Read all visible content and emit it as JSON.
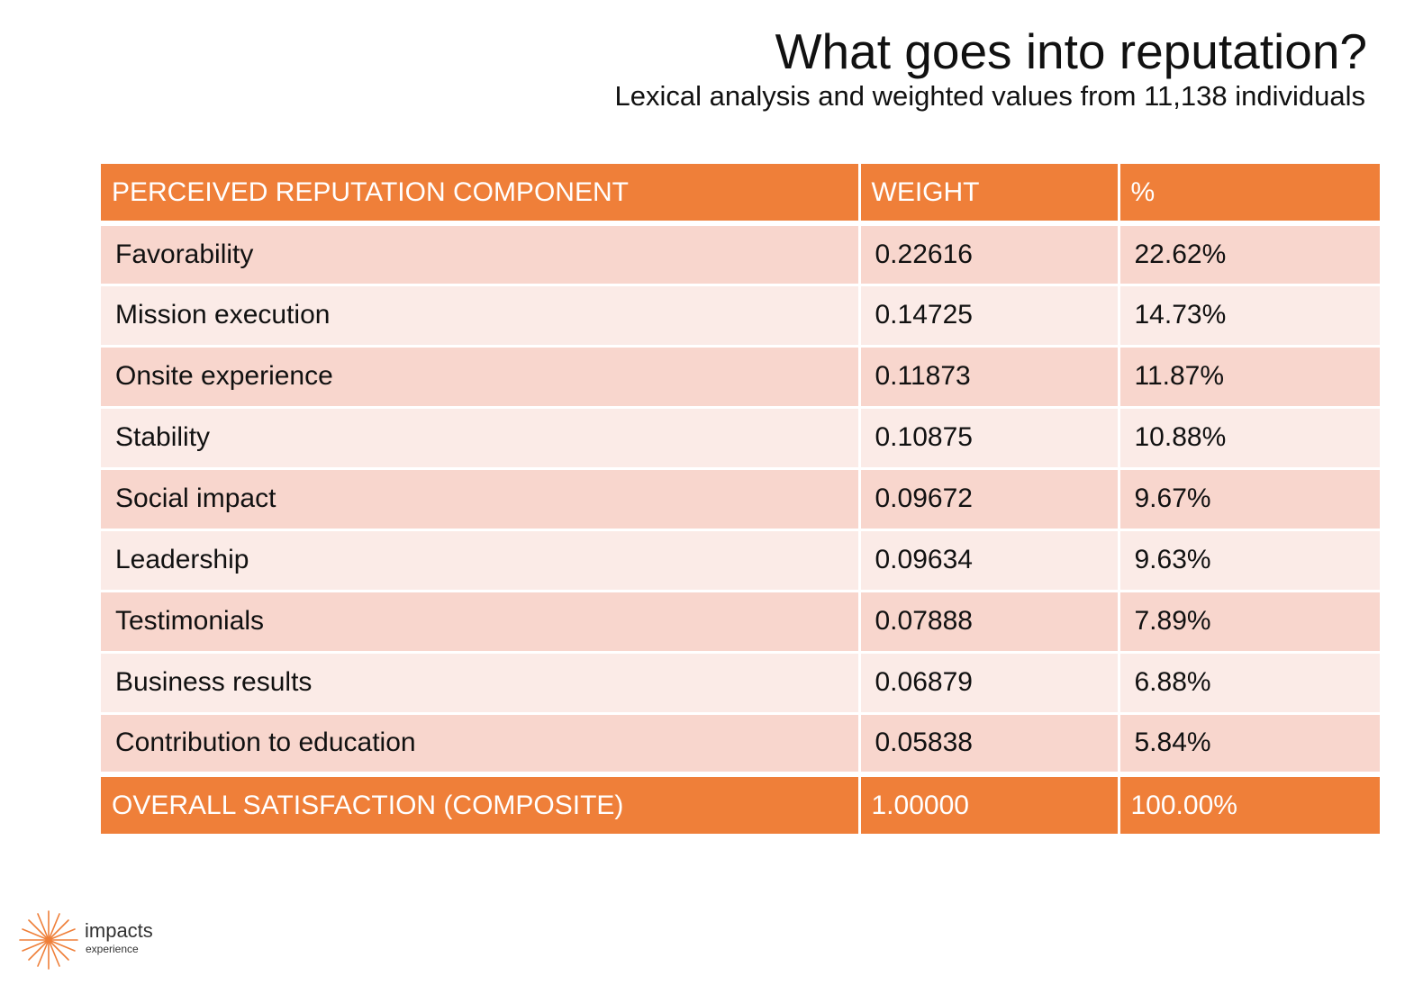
{
  "slide": {
    "title": "What goes into reputation?",
    "subtitle": "Lexical analysis and weighted values from 11,138 individuals"
  },
  "table": {
    "headers": [
      "PERCEIVED REPUTATION COMPONENT",
      "WEIGHT",
      "%"
    ],
    "rows": [
      {
        "component": "Favorability",
        "weight": "0.22616",
        "percent": "22.62%"
      },
      {
        "component": "Mission execution",
        "weight": "0.14725",
        "percent": "14.73%"
      },
      {
        "component": "Onsite experience",
        "weight": "0.11873",
        "percent": "11.87%"
      },
      {
        "component": "Stability",
        "weight": "0.10875",
        "percent": "10.88%"
      },
      {
        "component": "Social impact",
        "weight": "0.09672",
        "percent": "9.67%"
      },
      {
        "component": "Leadership",
        "weight": "0.09634",
        "percent": "9.63%"
      },
      {
        "component": "Testimonials",
        "weight": "0.07888",
        "percent": "7.89%"
      },
      {
        "component": "Business results",
        "weight": "0.06879",
        "percent": "6.88%"
      },
      {
        "component": "Contribution to education",
        "weight": "0.05838",
        "percent": "5.84%"
      }
    ],
    "total": {
      "component": "OVERALL SATISFACTION (COMPOSITE)",
      "weight": "1.00000",
      "percent": "100.00%"
    }
  },
  "logo": {
    "name": "impacts",
    "sub": "experience",
    "icon": "starburst-icon",
    "color": "#ef7f39"
  },
  "colors": {
    "accent": "#ef7f39",
    "row_dark": "#f8d6cd",
    "row_light": "#fbebe7"
  }
}
